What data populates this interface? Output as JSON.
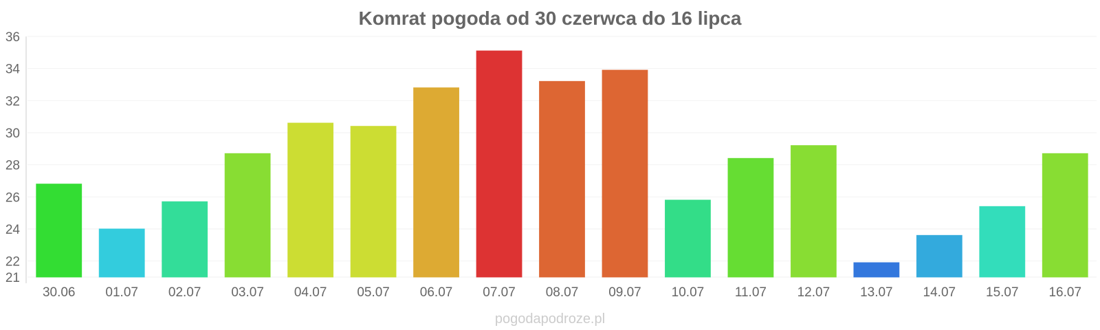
{
  "chart_data": {
    "type": "bar",
    "title": "Komrat pogoda od 30 czerwca do 16 lipca",
    "xlabel": "",
    "ylabel": "",
    "categories": [
      "30.06",
      "01.07",
      "02.07",
      "03.07",
      "04.07",
      "05.07",
      "06.07",
      "07.07",
      "08.07",
      "09.07",
      "10.07",
      "11.07",
      "12.07",
      "13.07",
      "14.07",
      "15.07",
      "16.07"
    ],
    "values": [
      26.8,
      24.0,
      25.7,
      28.7,
      30.6,
      30.4,
      32.8,
      35.1,
      33.2,
      33.9,
      25.8,
      28.4,
      29.2,
      21.9,
      23.6,
      25.4,
      28.7
    ],
    "colors": [
      "#33dd33",
      "#33ccdd",
      "#33dd99",
      "#88dd33",
      "#ccdd33",
      "#ccdd33",
      "#ddaa33",
      "#dd3333",
      "#dd6633",
      "#dd6633",
      "#33dd88",
      "#66dd33",
      "#88dd33",
      "#3377dd",
      "#33aadd",
      "#33ddbb",
      "#88dd33"
    ],
    "ylim": [
      21,
      36
    ],
    "yticks": [
      21,
      22,
      24,
      26,
      28,
      30,
      32,
      34,
      36
    ],
    "grid": true,
    "legend": "none",
    "source": "pogodapodroze.pl"
  }
}
